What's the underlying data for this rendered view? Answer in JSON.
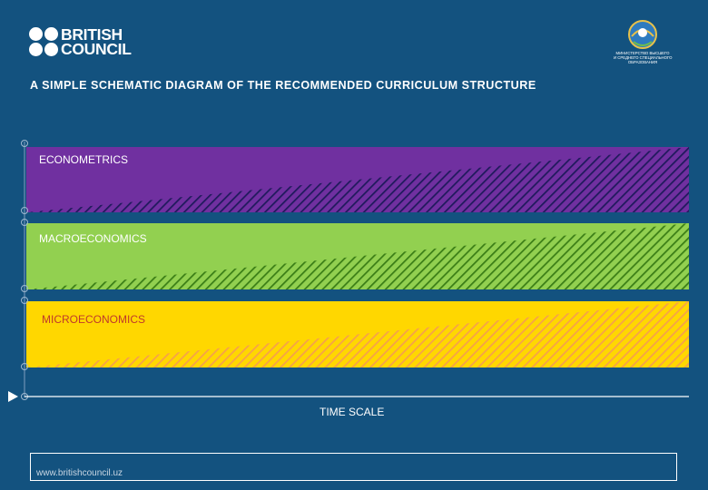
{
  "brand": {
    "logo_line1": "BRITISH",
    "logo_line2": "COUNCIL"
  },
  "emblem": {
    "text_lines": [
      "МИНИСТЕРСТВО ВЫСШЕГО",
      "И СРЕДНЕГО СПЕЦИАЛЬНОГО",
      "ОБРАЗОВАНИЯ"
    ]
  },
  "title": "A SIMPLE SCHEMATIC DIAGRAM OF THE RECOMMENDED CURRICULUM STRUCTURE",
  "bands": [
    {
      "label": "ECONOMETRICS",
      "color": "#7030a0",
      "hatch_color": "#1f1a5c",
      "label_color": "#ffffff"
    },
    {
      "label": "MACROECONOMICS",
      "color": "#92d050",
      "hatch_color": "#3a7d16",
      "label_color": "#ffffff"
    },
    {
      "label": "MICROECONOMICS",
      "color": "#ffd700",
      "hatch_color": "#f6a14a",
      "label_color": "#c0392b"
    }
  ],
  "axis": {
    "label": "TIME SCALE",
    "marker_icon": "play-arrow-icon"
  },
  "footer": {
    "url": "www.britishcouncil.uz"
  }
}
